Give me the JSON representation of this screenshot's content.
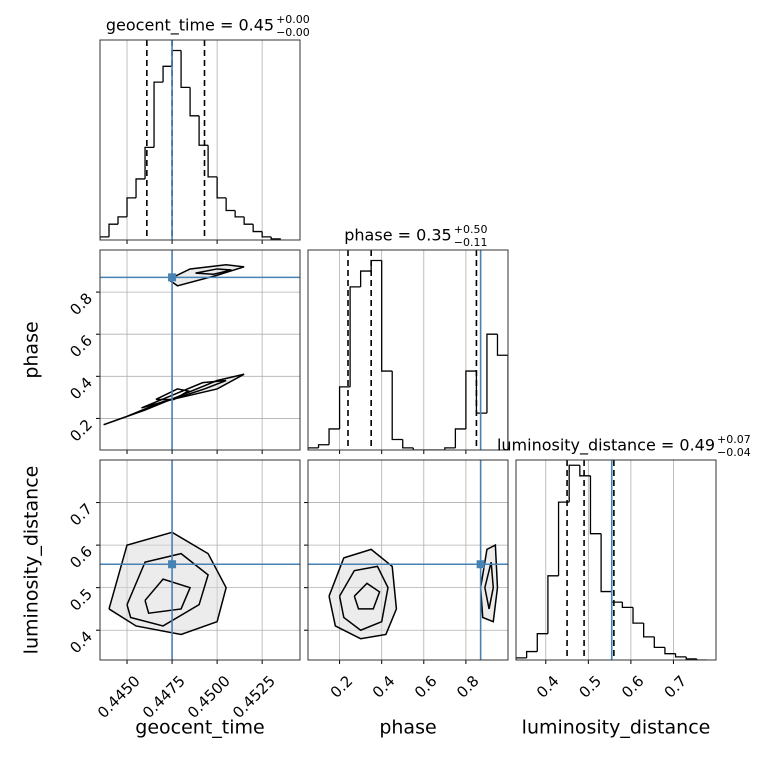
{
  "chart_data": {
    "type": "corner",
    "truth_color": "#4682b4",
    "line_color": "#000000",
    "fill_color": "#d9d9d9",
    "grid": true,
    "parameters": [
      {
        "name": "geocent_time",
        "title": "geocent_time = 0.45",
        "title_upper": "+0.00",
        "title_lower": "−0.00",
        "lim": [
          0.4435,
          0.4546
        ],
        "ticks": [
          {
            "value": 0.445,
            "label": "0.4450"
          },
          0.4475,
          {
            "value": 0.45,
            "label": "0.4500"
          },
          0.4525
        ],
        "truth": 0.4475,
        "quantiles": [
          0.4461,
          0.4475,
          0.4493
        ],
        "bins": [
          0.4435,
          0.444,
          0.4445,
          0.445,
          0.4455,
          0.446,
          0.4465,
          0.447,
          0.4475,
          0.448,
          0.4485,
          0.449,
          0.4495,
          0.45,
          0.4505,
          0.451,
          0.4515,
          0.452,
          0.4525,
          0.453,
          0.4535
        ],
        "counts": [
          3,
          15,
          22,
          40,
          58,
          88,
          150,
          165,
          180,
          145,
          118,
          90,
          60,
          40,
          28,
          22,
          15,
          8,
          3,
          1
        ],
        "count_lim": [
          0,
          190
        ]
      },
      {
        "name": "phase",
        "title": "phase = 0.35",
        "title_upper": "+0.50",
        "title_lower": "−0.11",
        "lim": [
          0.05,
          1.0
        ],
        "ticks": [
          0.2,
          0.4,
          0.6,
          0.8
        ],
        "truth": 0.87,
        "quantiles": [
          0.24,
          0.35,
          0.85
        ],
        "bins": [
          0.05,
          0.1,
          0.15,
          0.2,
          0.25,
          0.3,
          0.35,
          0.4,
          0.45,
          0.5,
          0.55,
          0.6,
          0.65,
          0.7,
          0.75,
          0.8,
          0.85,
          0.9,
          0.95,
          1.0
        ],
        "counts": [
          2,
          5,
          20,
          60,
          155,
          170,
          180,
          75,
          10,
          2,
          0,
          0,
          0,
          2,
          20,
          75,
          35,
          110,
          90
        ],
        "count_lim": [
          0,
          190
        ]
      },
      {
        "name": "luminosity_distance",
        "title": "luminosity_distance = 0.49",
        "title_upper": "+0.07",
        "title_lower": "−0.04",
        "lim": [
          0.33,
          0.8
        ],
        "ticks": [
          0.4,
          0.5,
          0.6,
          0.7
        ],
        "truth": 0.555,
        "quantiles": [
          0.45,
          0.49,
          0.56
        ],
        "bins": [
          0.33,
          0.355,
          0.38,
          0.405,
          0.43,
          0.455,
          0.48,
          0.505,
          0.53,
          0.555,
          0.58,
          0.605,
          0.63,
          0.655,
          0.68,
          0.705,
          0.73,
          0.755,
          0.78
        ],
        "counts": [
          2,
          8,
          25,
          80,
          150,
          185,
          175,
          120,
          65,
          55,
          50,
          35,
          22,
          12,
          6,
          3,
          1,
          0
        ],
        "count_lim": [
          0,
          190
        ]
      }
    ],
    "pairs": [
      {
        "contours": [
          {
            "x": [
              0.4437,
              0.446,
              0.448,
              0.45,
              0.4515,
              0.45,
              0.447,
              0.445,
              0.4437
            ],
            "y": [
              0.17,
              0.24,
              0.31,
              0.38,
              0.41,
              0.34,
              0.28,
              0.21,
              0.17
            ]
          },
          {
            "x": [
              0.4458,
              0.4475,
              0.4492,
              0.4505,
              0.4493,
              0.4475,
              0.4458
            ],
            "y": [
              0.25,
              0.31,
              0.37,
              0.38,
              0.34,
              0.29,
              0.25
            ]
          },
          {
            "x": [
              0.4466,
              0.4478,
              0.4484,
              0.4476,
              0.4466
            ],
            "y": [
              0.29,
              0.34,
              0.33,
              0.29,
              0.29
            ]
          },
          {
            "x": [
              0.4473,
              0.4485,
              0.4505,
              0.4515,
              0.45,
              0.4478,
              0.4473
            ],
            "y": [
              0.86,
              0.91,
              0.93,
              0.92,
              0.88,
              0.83,
              0.86
            ]
          },
          {
            "x": [
              0.4488,
              0.45,
              0.4508,
              0.4498,
              0.4488
            ],
            "y": [
              0.89,
              0.91,
              0.905,
              0.885,
              0.89
            ]
          }
        ]
      },
      {
        "contours": [
          {
            "x": [
              0.444,
              0.445,
              0.4475,
              0.4495,
              0.4505,
              0.45,
              0.448,
              0.4455,
              0.444
            ],
            "y": [
              0.45,
              0.6,
              0.63,
              0.58,
              0.5,
              0.42,
              0.39,
              0.41,
              0.45
            ]
          },
          {
            "x": [
              0.445,
              0.446,
              0.448,
              0.4495,
              0.449,
              0.447,
              0.4452,
              0.445
            ],
            "y": [
              0.46,
              0.56,
              0.58,
              0.53,
              0.46,
              0.41,
              0.43,
              0.46
            ]
          },
          {
            "x": [
              0.446,
              0.447,
              0.4485,
              0.448,
              0.4462,
              0.446
            ],
            "y": [
              0.47,
              0.52,
              0.5,
              0.45,
              0.44,
              0.47
            ]
          }
        ]
      },
      {
        "contours": [
          {
            "x": [
              0.15,
              0.22,
              0.35,
              0.45,
              0.47,
              0.42,
              0.3,
              0.18,
              0.15
            ],
            "y": [
              0.48,
              0.57,
              0.59,
              0.55,
              0.45,
              0.39,
              0.38,
              0.41,
              0.48
            ]
          },
          {
            "x": [
              0.2,
              0.27,
              0.38,
              0.43,
              0.4,
              0.3,
              0.22,
              0.2
            ],
            "y": [
              0.48,
              0.54,
              0.55,
              0.5,
              0.42,
              0.4,
              0.43,
              0.48
            ]
          },
          {
            "x": [
              0.27,
              0.33,
              0.39,
              0.36,
              0.29,
              0.27
            ],
            "y": [
              0.48,
              0.51,
              0.49,
              0.45,
              0.45,
              0.48
            ]
          },
          {
            "x": [
              0.87,
              0.9,
              0.94,
              0.95,
              0.93,
              0.88,
              0.87
            ],
            "y": [
              0.5,
              0.59,
              0.6,
              0.5,
              0.42,
              0.43,
              0.5
            ]
          },
          {
            "x": [
              0.89,
              0.92,
              0.93,
              0.91,
              0.89
            ],
            "y": [
              0.5,
              0.56,
              0.5,
              0.45,
              0.5
            ]
          }
        ]
      }
    ]
  }
}
